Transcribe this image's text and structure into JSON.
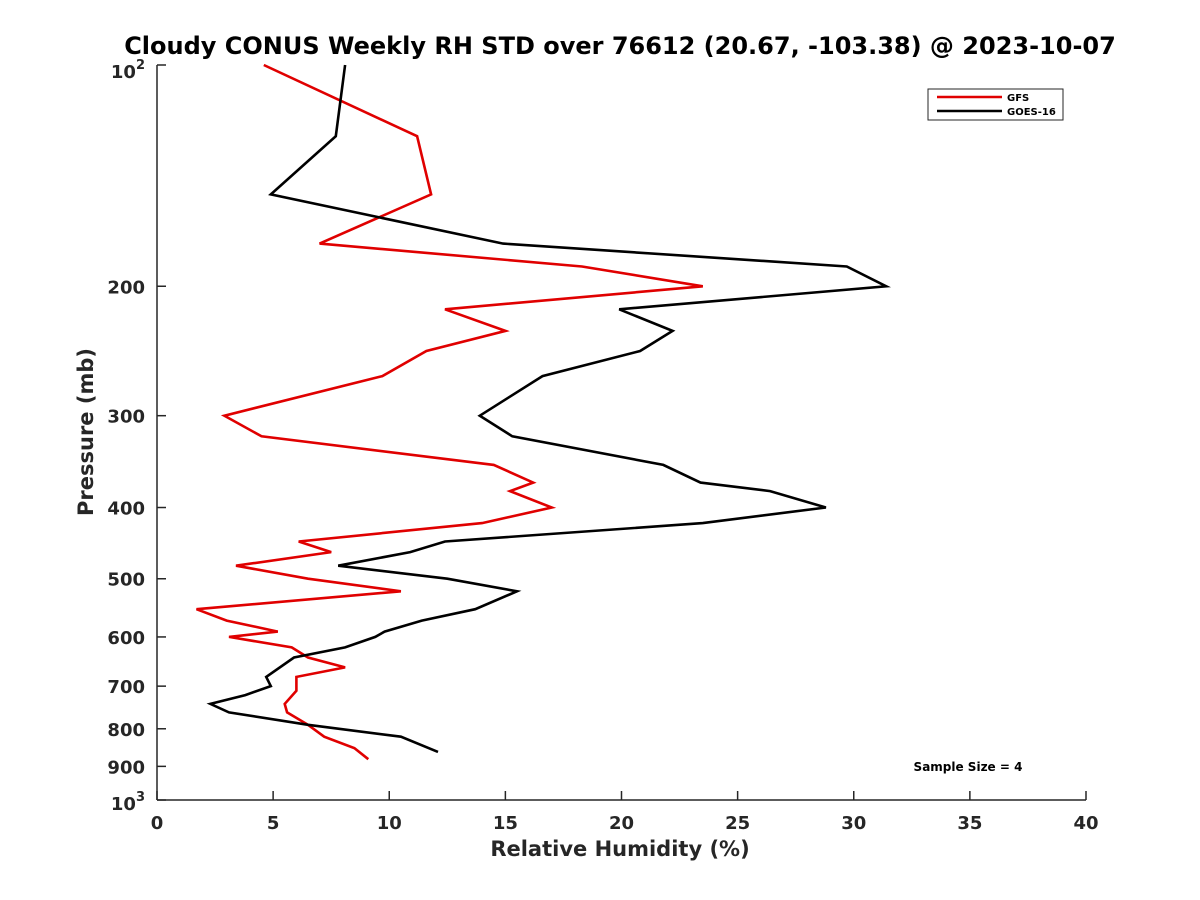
{
  "chart_data": {
    "type": "line",
    "title": "Cloudy CONUS Weekly RH STD over 76612 (20.67, -103.38) @ 2023-10-07",
    "xlabel": "Relative Humidity (%)",
    "ylabel": "Pressure (mb)",
    "xlim": [
      0,
      40
    ],
    "ylim": [
      100,
      1000
    ],
    "yscale": "log",
    "y_reversed": true,
    "grid": false,
    "x_ticks": [
      0,
      5,
      10,
      15,
      20,
      25,
      30,
      35,
      40
    ],
    "x_tick_labels": [
      "0",
      "5",
      "10",
      "15",
      "20",
      "25",
      "30",
      "35",
      "40"
    ],
    "y_ticks": [
      200,
      300,
      400,
      500,
      600,
      700,
      800,
      900
    ],
    "y_tick_labels": [
      "200",
      "300",
      "400",
      "500",
      "600",
      "700",
      "800",
      "900"
    ],
    "y_top_label": {
      "base": "10",
      "exp": "2"
    },
    "y_bottom_label": {
      "base": "10",
      "exp": "3"
    },
    "legend_position": "top-right",
    "annotation": "Sample Size = 4",
    "series": [
      {
        "name": "GFS",
        "color": "#e00000",
        "points": [
          [
            4.6,
            100
          ],
          [
            11.2,
            125
          ],
          [
            11.8,
            150
          ],
          [
            7.0,
            175
          ],
          [
            18.3,
            188
          ],
          [
            23.5,
            200
          ],
          [
            12.4,
            215
          ],
          [
            15.0,
            230
          ],
          [
            11.6,
            245
          ],
          [
            9.7,
            265
          ],
          [
            2.9,
            300
          ],
          [
            4.5,
            320
          ],
          [
            14.5,
            350
          ],
          [
            16.2,
            370
          ],
          [
            15.2,
            380
          ],
          [
            17.0,
            400
          ],
          [
            14.0,
            420
          ],
          [
            6.1,
            445
          ],
          [
            7.5,
            460
          ],
          [
            3.4,
            480
          ],
          [
            6.5,
            500
          ],
          [
            10.5,
            520
          ],
          [
            1.7,
            550
          ],
          [
            3.0,
            570
          ],
          [
            5.2,
            590
          ],
          [
            3.1,
            600
          ],
          [
            5.8,
            620
          ],
          [
            6.5,
            640
          ],
          [
            8.1,
            660
          ],
          [
            6.0,
            680
          ],
          [
            6.0,
            710
          ],
          [
            5.5,
            740
          ],
          [
            5.6,
            760
          ],
          [
            6.5,
            790
          ],
          [
            7.2,
            820
          ],
          [
            8.5,
            850
          ],
          [
            9.1,
            880
          ]
        ]
      },
      {
        "name": "GOES-16",
        "color": "#000000",
        "points": [
          [
            8.1,
            100
          ],
          [
            7.7,
            125
          ],
          [
            4.9,
            150
          ],
          [
            14.9,
            175
          ],
          [
            29.7,
            188
          ],
          [
            31.4,
            200
          ],
          [
            19.9,
            215
          ],
          [
            22.2,
            230
          ],
          [
            20.8,
            245
          ],
          [
            16.6,
            265
          ],
          [
            13.9,
            300
          ],
          [
            15.3,
            320
          ],
          [
            21.8,
            350
          ],
          [
            23.4,
            370
          ],
          [
            26.4,
            380
          ],
          [
            28.8,
            400
          ],
          [
            23.5,
            420
          ],
          [
            12.4,
            445
          ],
          [
            10.9,
            460
          ],
          [
            7.8,
            480
          ],
          [
            12.5,
            500
          ],
          [
            15.5,
            520
          ],
          [
            13.7,
            550
          ],
          [
            11.4,
            570
          ],
          [
            9.8,
            590
          ],
          [
            9.4,
            600
          ],
          [
            8.1,
            620
          ],
          [
            5.9,
            640
          ],
          [
            4.7,
            680
          ],
          [
            4.9,
            700
          ],
          [
            3.8,
            720
          ],
          [
            2.3,
            740
          ],
          [
            3.1,
            760
          ],
          [
            6.5,
            790
          ],
          [
            10.5,
            820
          ],
          [
            12.1,
            860
          ]
        ]
      }
    ]
  }
}
